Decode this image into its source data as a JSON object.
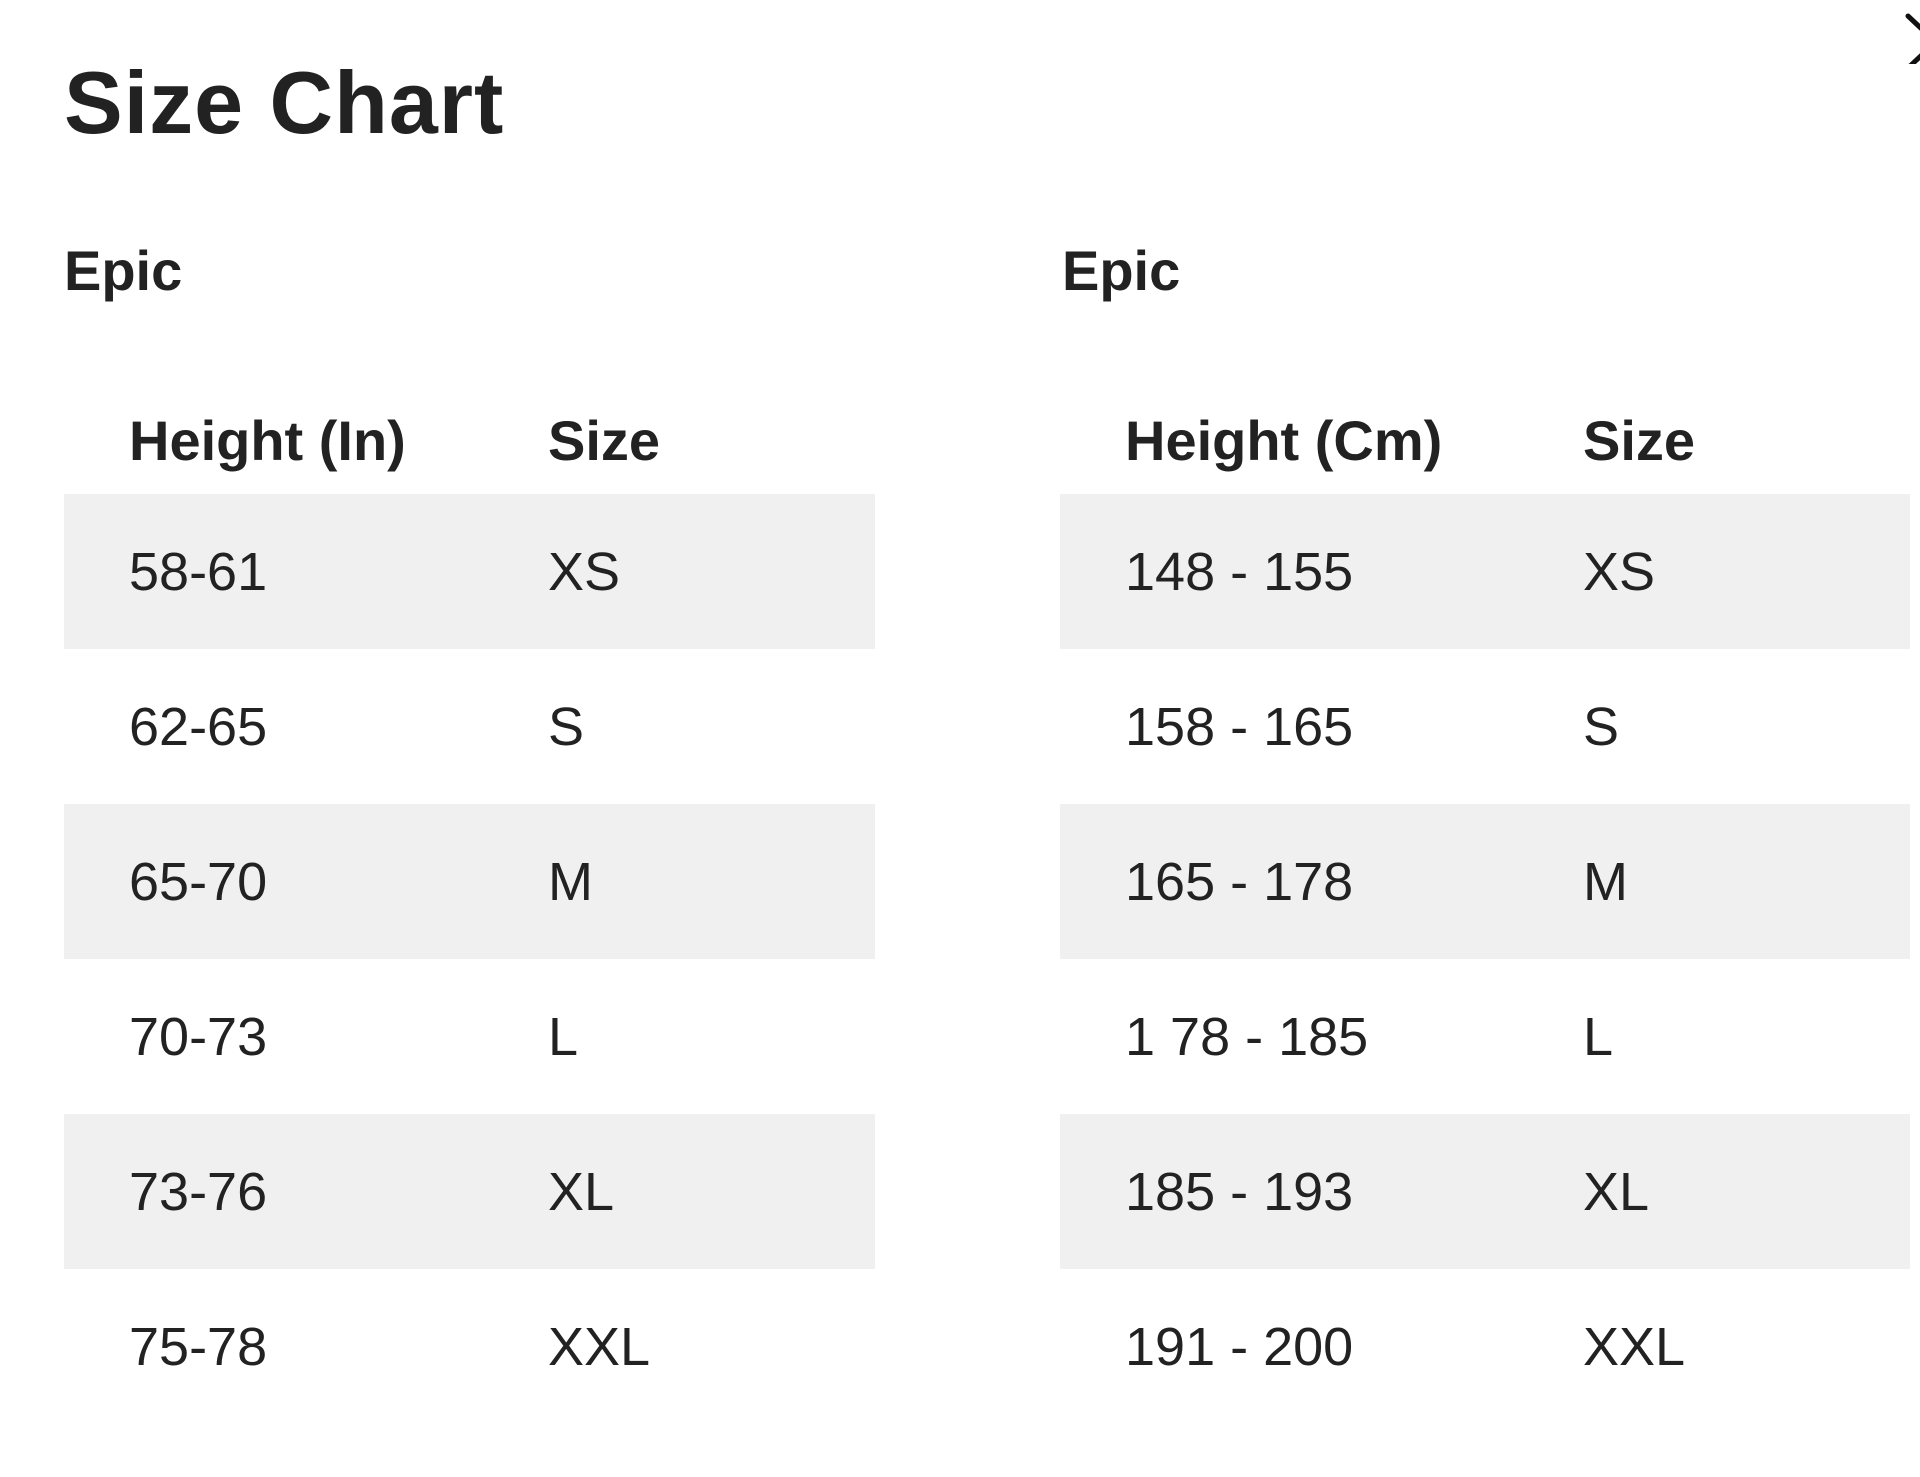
{
  "title": "Size Chart",
  "close_icon": "close-icon",
  "row_shade_color": "#f0f0f0",
  "tables": [
    {
      "heading": "Epic",
      "columns": [
        "Height (In)",
        "Size"
      ],
      "rows": [
        [
          "58-61",
          "XS"
        ],
        [
          "62-65",
          "S"
        ],
        [
          "65-70",
          "M"
        ],
        [
          "70-73",
          "L"
        ],
        [
          "73-76",
          "XL"
        ],
        [
          "75-78",
          "XXL"
        ]
      ]
    },
    {
      "heading": "Epic",
      "columns": [
        "Height (Cm)",
        "Size"
      ],
      "rows": [
        [
          "148 - 155",
          "XS"
        ],
        [
          "158 - 165",
          "S"
        ],
        [
          "165 - 178",
          "M"
        ],
        [
          "1 78 - 185",
          "L"
        ],
        [
          "185 - 193",
          "XL"
        ],
        [
          "191 - 200",
          "XXL"
        ]
      ]
    }
  ]
}
